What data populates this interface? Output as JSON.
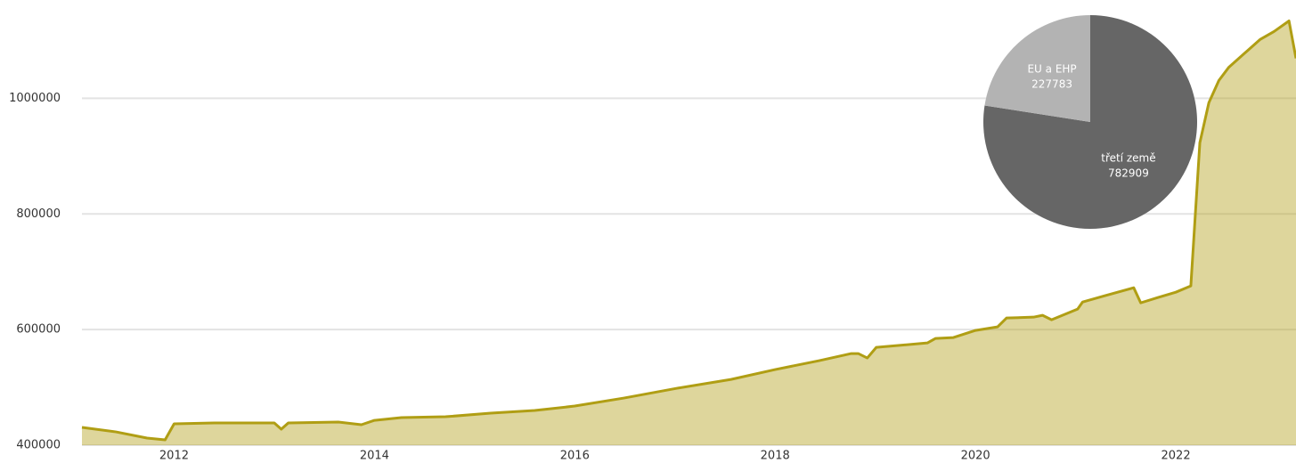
{
  "chart_data": [
    {
      "type": "area",
      "x": [
        2011.08,
        2011.42,
        2011.73,
        2011.91,
        2012.0,
        2012.4,
        2013.0,
        2013.07,
        2013.14,
        2013.64,
        2013.87,
        2014.0,
        2014.27,
        2014.71,
        2015.16,
        2015.6,
        2016.0,
        2016.49,
        2017.02,
        2017.56,
        2018.0,
        2018.44,
        2018.76,
        2018.83,
        2018.92,
        2019.01,
        2019.52,
        2019.6,
        2019.78,
        2020.0,
        2020.22,
        2020.31,
        2020.58,
        2020.67,
        2020.76,
        2021.02,
        2021.07,
        2021.29,
        2021.58,
        2021.65,
        2021.82,
        2022.0,
        2022.15,
        2022.24,
        2022.33,
        2022.43,
        2022.53,
        2022.71,
        2022.84,
        2022.98,
        2023.13,
        2023.2
      ],
      "series": [
        {
          "color": "#b09e14",
          "values": [
            430800,
            423000,
            412300,
            409200,
            437000,
            438500,
            438500,
            427700,
            438500,
            440000,
            435400,
            443000,
            447700,
            449200,
            455400,
            460000,
            467700,
            481500,
            498500,
            513800,
            530800,
            546200,
            558500,
            558500,
            550800,
            569200,
            576900,
            584600,
            586200,
            598500,
            604600,
            620000,
            621500,
            624600,
            616900,
            635400,
            647700,
            658500,
            672300,
            646200,
            655400,
            664600,
            675400,
            923100,
            992300,
            1030800,
            1053800,
            1081500,
            1101500,
            1115400,
            1133800,
            1069200
          ]
        }
      ],
      "xlim": [
        2011.08,
        2023.2
      ],
      "xticks": [
        2012,
        2014,
        2016,
        2018,
        2020,
        2022
      ],
      "ylim": [
        400000,
        1170000
      ],
      "yticks": [
        400000,
        600000,
        800000,
        1000000
      ],
      "grid": true
    },
    {
      "type": "pie",
      "categories": [
        "třetí země",
        "EU a EHP"
      ],
      "values": [
        782909,
        227783
      ],
      "colors": [
        "#666666",
        "#b3b3b3"
      ]
    }
  ]
}
